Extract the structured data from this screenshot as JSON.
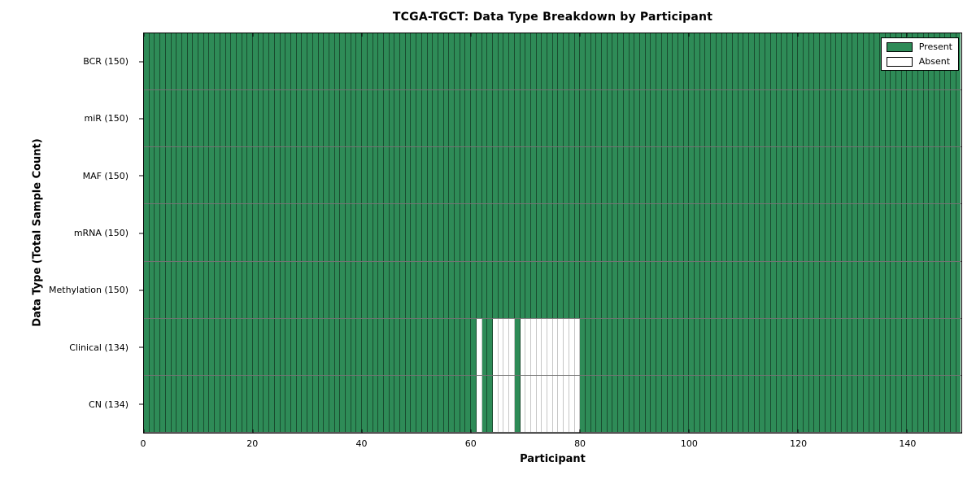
{
  "chart_data": {
    "type": "heatmap",
    "title": "TCGA-TGCT: Data Type Breakdown by Participant",
    "xlabel": "Participant",
    "ylabel": "Data Type (Total Sample Count)",
    "x_range": [
      0,
      150
    ],
    "n_participants": 150,
    "x_ticks": [
      0,
      20,
      40,
      60,
      80,
      100,
      120,
      140
    ],
    "legend_position": "upper right",
    "grid": "per-cell borders",
    "rows": [
      {
        "label": "BCR (150)",
        "data_type": "BCR",
        "present_count": 150,
        "absent_participants": []
      },
      {
        "label": "miR (150)",
        "data_type": "miR",
        "present_count": 150,
        "absent_participants": []
      },
      {
        "label": "MAF (150)",
        "data_type": "MAF",
        "present_count": 150,
        "absent_participants": []
      },
      {
        "label": "mRNA (150)",
        "data_type": "mRNA",
        "present_count": 150,
        "absent_participants": []
      },
      {
        "label": "Methylation (150)",
        "data_type": "Methylation",
        "present_count": 150,
        "absent_participants": []
      },
      {
        "label": "Clinical (134)",
        "data_type": "Clinical",
        "present_count": 134,
        "absent_participants": [
          61,
          64,
          65,
          66,
          67,
          69,
          70,
          71,
          72,
          73,
          74,
          75,
          76,
          77,
          78,
          79
        ]
      },
      {
        "label": "CN (134)",
        "data_type": "CN",
        "present_count": 134,
        "absent_participants": [
          61,
          64,
          65,
          66,
          67,
          69,
          70,
          71,
          72,
          73,
          74,
          75,
          76,
          77,
          78,
          79
        ]
      }
    ],
    "legend": [
      {
        "label": "Present",
        "color": "#2e8b57"
      },
      {
        "label": "Absent",
        "color": "#ffffff"
      }
    ]
  }
}
